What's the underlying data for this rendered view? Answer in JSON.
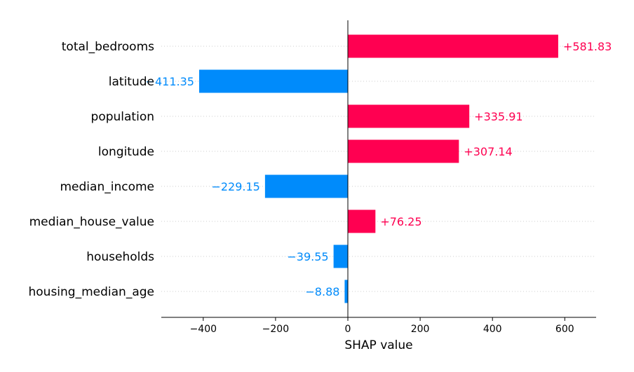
{
  "chart_data": {
    "type": "bar",
    "orientation": "horizontal",
    "xlabel": "SHAP value",
    "xlim": [
      -520,
      680
    ],
    "x_ticks": [
      -400,
      -200,
      0,
      200,
      400,
      600
    ],
    "x_tick_labels": [
      "−400",
      "−200",
      "0",
      "200",
      "400",
      "600"
    ],
    "colors": {
      "positive": "#ff0051",
      "negative": "#008bfb"
    },
    "grid": "dotted horizontal row guides",
    "bars": [
      {
        "feature": "total_bedrooms",
        "value": 581.83,
        "label": "+581.83"
      },
      {
        "feature": "latitude",
        "value": -411.35,
        "label": "−411.35"
      },
      {
        "feature": "population",
        "value": 335.91,
        "label": "+335.91"
      },
      {
        "feature": "longitude",
        "value": 307.14,
        "label": "+307.14"
      },
      {
        "feature": "median_income",
        "value": -229.15,
        "label": "−229.15"
      },
      {
        "feature": "median_house_value",
        "value": 76.25,
        "label": "+76.25"
      },
      {
        "feature": "households",
        "value": -39.55,
        "label": "−39.55"
      },
      {
        "feature": "housing_median_age",
        "value": -8.88,
        "label": "−8.88"
      }
    ]
  }
}
